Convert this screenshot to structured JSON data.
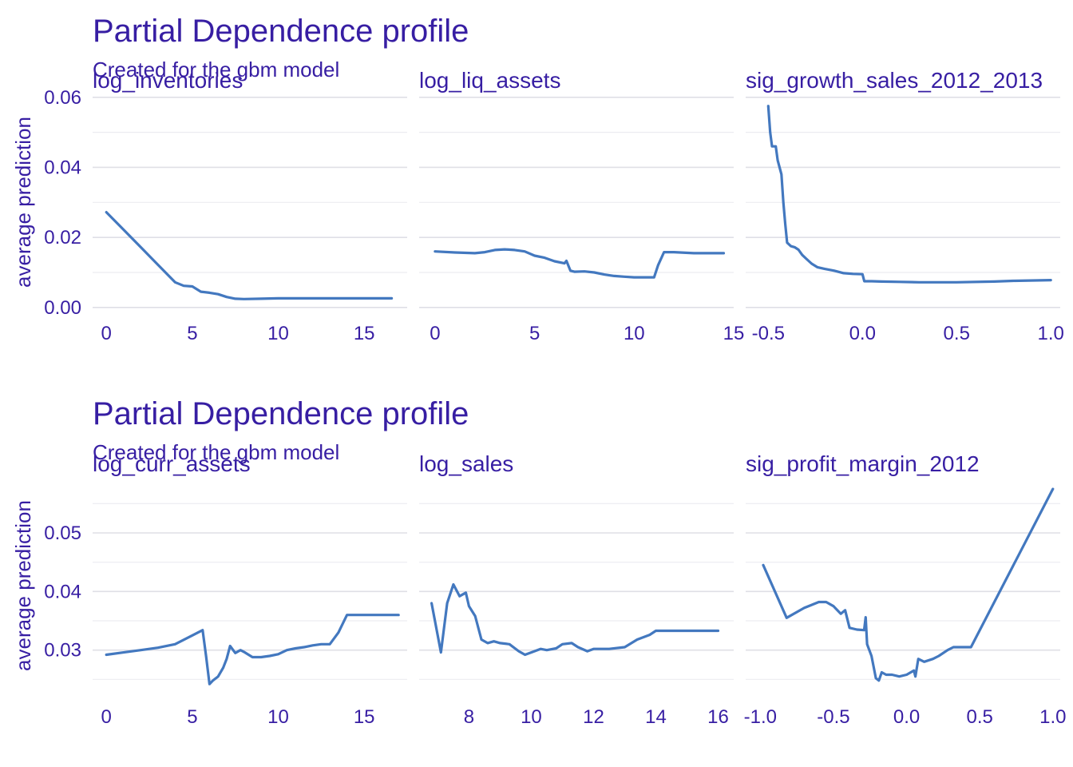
{
  "colors": {
    "text": "#371ea3",
    "line": "#4378bf",
    "grid": "#dfdfe6"
  },
  "chart_data": [
    {
      "type": "line",
      "title": "Partial Dependence profile",
      "subtitle": "Created for the gbm model",
      "ylabel": "average prediction",
      "ylim": [
        -0.003,
        0.062
      ],
      "yticks": [
        0,
        0.02,
        0.04,
        0.06
      ],
      "ytick_labels": [
        "0.00",
        "0.02",
        "0.04",
        "0.06"
      ],
      "ygrid_minor": [
        0.01,
        0.03,
        0.05
      ],
      "grid": true,
      "legend": "none",
      "panels": [
        {
          "label": "log_inventories",
          "xlim": [
            -0.8,
            17.5
          ],
          "xticks": [
            0,
            5,
            10,
            15
          ],
          "xtick_labels": [
            "0",
            "5",
            "10",
            "15"
          ],
          "x": [
            0,
            1,
            2,
            3,
            4,
            4.5,
            5,
            5.5,
            6,
            6.5,
            7,
            7.5,
            8,
            9,
            10,
            12,
            14,
            16.6
          ],
          "y": [
            0.0272,
            0.0222,
            0.0172,
            0.0122,
            0.0072,
            0.0062,
            0.006,
            0.0045,
            0.0042,
            0.0038,
            0.003,
            0.0025,
            0.0024,
            0.0025,
            0.0026,
            0.0026,
            0.0026,
            0.0026
          ]
        },
        {
          "label": "log_liq_assets",
          "xlim": [
            -0.8,
            15
          ],
          "xticks": [
            0,
            5,
            10,
            15
          ],
          "xtick_labels": [
            "0",
            "5",
            "10",
            "15"
          ],
          "x": [
            0,
            1,
            2,
            2.5,
            3,
            3.5,
            4,
            4.5,
            5,
            5.5,
            6,
            6.5,
            6.6,
            6.8,
            7,
            7.5,
            8,
            8.5,
            9,
            9.5,
            10,
            11,
            11.2,
            11.5,
            12,
            13,
            14.5
          ],
          "y": [
            0.016,
            0.0157,
            0.0155,
            0.0158,
            0.0164,
            0.0166,
            0.0164,
            0.016,
            0.0148,
            0.0142,
            0.0132,
            0.0126,
            0.0133,
            0.0105,
            0.0102,
            0.0103,
            0.01,
            0.0094,
            0.009,
            0.0088,
            0.0086,
            0.0086,
            0.012,
            0.0158,
            0.0158,
            0.0155,
            0.0155
          ]
        },
        {
          "label": "sig_growth_sales_2012_2013",
          "xlim": [
            -0.62,
            1.05
          ],
          "xticks": [
            -0.5,
            0,
            0.5,
            1
          ],
          "xtick_labels": [
            "-0.5",
            "0.0",
            "0.5",
            "1.0"
          ],
          "x": [
            -0.5,
            -0.49,
            -0.48,
            -0.46,
            -0.45,
            -0.43,
            -0.42,
            -0.41,
            -0.4,
            -0.38,
            -0.36,
            -0.34,
            -0.32,
            -0.3,
            -0.27,
            -0.24,
            -0.2,
            -0.15,
            -0.1,
            -0.05,
            0.0,
            0.01,
            0.05,
            0.1,
            0.2,
            0.3,
            0.5,
            0.7,
            0.8,
            1.0
          ],
          "y": [
            0.0575,
            0.05,
            0.046,
            0.046,
            0.042,
            0.038,
            0.03,
            0.024,
            0.0185,
            0.0175,
            0.0172,
            0.0165,
            0.015,
            0.014,
            0.0125,
            0.0115,
            0.011,
            0.0105,
            0.0098,
            0.0096,
            0.0095,
            0.0075,
            0.0075,
            0.0074,
            0.0073,
            0.0072,
            0.0072,
            0.0074,
            0.0076,
            0.0078
          ]
        }
      ]
    },
    {
      "type": "line",
      "title": "Partial Dependence profile",
      "subtitle": "Created for the gbm model",
      "ylabel": "average prediction",
      "ylim": [
        0.0215,
        0.0605
      ],
      "yticks": [
        0.03,
        0.04,
        0.05
      ],
      "ytick_labels": [
        "0.03",
        "0.04",
        "0.05"
      ],
      "ygrid_minor": [
        0.025,
        0.035,
        0.045,
        0.055
      ],
      "grid": true,
      "legend": "none",
      "panels": [
        {
          "label": "log_curr_assets",
          "xlim": [
            -0.8,
            17.5
          ],
          "xticks": [
            0,
            5,
            10,
            15
          ],
          "xtick_labels": [
            "0",
            "5",
            "10",
            "15"
          ],
          "x": [
            0,
            1,
            2,
            3,
            4,
            5,
            5.6,
            5.8,
            6.0,
            6.2,
            6.5,
            6.8,
            7.0,
            7.2,
            7.5,
            7.8,
            8.0,
            8.5,
            9.0,
            9.5,
            10.0,
            10.5,
            11.0,
            11.5,
            12.0,
            12.5,
            13.0,
            13.5,
            14.0,
            15.0,
            16.0,
            17.0
          ],
          "y": [
            0.0292,
            0.0296,
            0.03,
            0.0304,
            0.031,
            0.0325,
            0.0334,
            0.029,
            0.0242,
            0.0248,
            0.0255,
            0.027,
            0.0285,
            0.0307,
            0.0295,
            0.03,
            0.0297,
            0.0288,
            0.0288,
            0.029,
            0.0293,
            0.03,
            0.0303,
            0.0305,
            0.0308,
            0.031,
            0.031,
            0.033,
            0.036,
            0.036,
            0.036,
            0.036
          ],
          "xlabel": ""
        },
        {
          "label": "log_sales",
          "xlim": [
            6.4,
            16.5
          ],
          "xticks": [
            8,
            10,
            12,
            14,
            16
          ],
          "xtick_labels": [
            "8",
            "10",
            "12",
            "14",
            "16"
          ],
          "x": [
            6.8,
            7.1,
            7.3,
            7.5,
            7.7,
            7.9,
            8.0,
            8.2,
            8.4,
            8.6,
            8.8,
            9.0,
            9.3,
            9.6,
            9.8,
            10.0,
            10.3,
            10.5,
            10.8,
            11.0,
            11.3,
            11.5,
            11.8,
            12.0,
            12.5,
            13.0,
            13.4,
            13.8,
            14.0,
            15.0,
            16.0
          ],
          "y": [
            0.038,
            0.0296,
            0.038,
            0.0412,
            0.0392,
            0.0398,
            0.0375,
            0.0358,
            0.0318,
            0.0312,
            0.0315,
            0.0312,
            0.031,
            0.0298,
            0.0292,
            0.0296,
            0.0302,
            0.03,
            0.0303,
            0.031,
            0.0312,
            0.0305,
            0.0298,
            0.0302,
            0.0302,
            0.0305,
            0.0318,
            0.0326,
            0.0333,
            0.0333,
            0.0333
          ]
        },
        {
          "label": "sig_profit_margin_2012",
          "xlim": [
            -1.1,
            1.05
          ],
          "xticks": [
            -1,
            -0.5,
            0,
            0.5,
            1
          ],
          "xtick_labels": [
            "-1.0",
            "-0.5",
            "0.0",
            "0.5",
            "1.0"
          ],
          "x": [
            -0.98,
            -0.82,
            -0.7,
            -0.6,
            -0.55,
            -0.5,
            -0.45,
            -0.42,
            -0.39,
            -0.34,
            -0.29,
            -0.28,
            -0.27,
            -0.24,
            -0.21,
            -0.19,
            -0.17,
            -0.14,
            -0.1,
            -0.05,
            0.0,
            0.05,
            0.06,
            0.08,
            0.12,
            0.18,
            0.22,
            0.28,
            0.32,
            0.44,
            1.0
          ],
          "y": [
            0.0445,
            0.0355,
            0.0372,
            0.0382,
            0.0382,
            0.0375,
            0.0362,
            0.0368,
            0.0338,
            0.0335,
            0.0334,
            0.0356,
            0.031,
            0.029,
            0.0252,
            0.0248,
            0.0262,
            0.0258,
            0.0258,
            0.0255,
            0.0258,
            0.0265,
            0.0255,
            0.0285,
            0.028,
            0.0285,
            0.029,
            0.03,
            0.0305,
            0.0305,
            0.0575
          ]
        }
      ]
    }
  ]
}
